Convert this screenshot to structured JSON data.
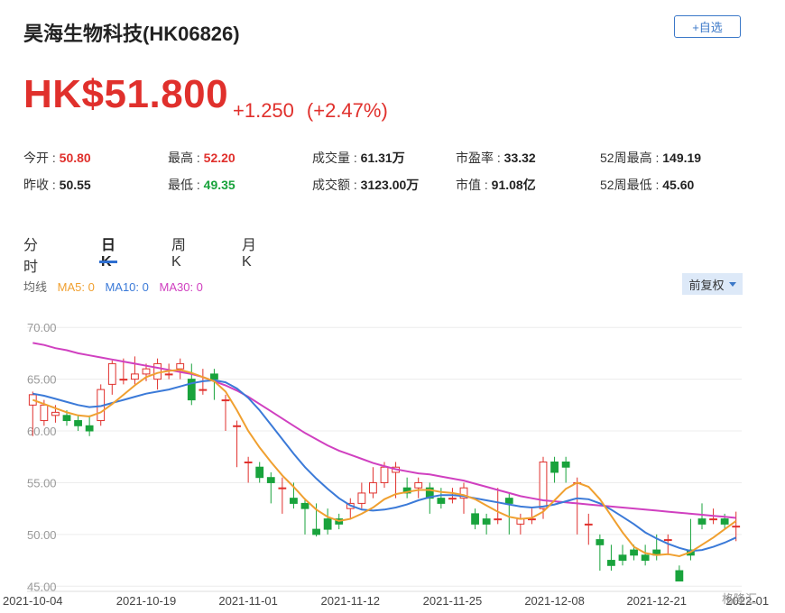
{
  "header": {
    "title": "昊海生物科技(HK06826)",
    "watch_label": "+自选"
  },
  "quote": {
    "price": "HK$51.800",
    "change": "+1.250",
    "change_pct": "(+2.47%)"
  },
  "stats": [
    {
      "label": "今开",
      "value": "50.80",
      "color": "#e0302c"
    },
    {
      "label": "最高",
      "value": "52.20",
      "color": "#e0302c"
    },
    {
      "label": "成交量",
      "value": "61.31万",
      "color": "#222222"
    },
    {
      "label": "市盈率",
      "value": "33.32",
      "color": "#222222"
    },
    {
      "label": "52周最高",
      "value": "149.19",
      "color": "#222222"
    },
    {
      "label": "昨收",
      "value": "50.55",
      "color": "#222222"
    },
    {
      "label": "最低",
      "value": "49.35",
      "color": "#19a33c"
    },
    {
      "label": "成交额",
      "value": "3123.00万",
      "color": "#222222"
    },
    {
      "label": "市值",
      "value": "91.08亿",
      "color": "#222222"
    },
    {
      "label": "52周最低",
      "value": "45.60",
      "color": "#222222"
    }
  ],
  "tabs": [
    {
      "label": "分时",
      "active": false
    },
    {
      "label": "日K",
      "active": true
    },
    {
      "label": "周K",
      "active": false
    },
    {
      "label": "月K",
      "active": false
    }
  ],
  "legend": {
    "prefix": "均线",
    "ma5": "MA5: 0",
    "ma10": "MA10: 0",
    "ma30": "MA30: 0",
    "ma5_color": "#f0a030",
    "ma10_color": "#3b7ad8",
    "ma30_color": "#d040c0"
  },
  "adjust_label": "前复权",
  "watermark": "格隆汇",
  "chart_data": {
    "type": "candlestick",
    "y_ticks": [
      "70.00",
      "65.00",
      "60.00",
      "55.00",
      "50.00",
      "45.00"
    ],
    "ylim": [
      44.5,
      71.5
    ],
    "x_ticks": [
      {
        "label": "2021-10-04",
        "index": 0
      },
      {
        "label": "2021-10-19",
        "index": 10
      },
      {
        "label": "2021-11-01",
        "index": 19
      },
      {
        "label": "2021-11-12",
        "index": 28
      },
      {
        "label": "2021-11-25",
        "index": 37
      },
      {
        "label": "2021-12-08",
        "index": 46
      },
      {
        "label": "2021-12-21",
        "index": 55
      },
      {
        "label": "2022-01",
        "index": 63
      }
    ],
    "up_color": "#e0302c",
    "down_color": "#19a33c",
    "candles": [
      [
        62.5,
        63.5,
        60.0,
        59.5,
        63.8
      ],
      [
        61.0,
        62.5,
        61.0,
        60.5,
        63.0
      ],
      [
        61.5,
        61.8,
        61.0,
        60.8,
        62.5
      ],
      [
        61.5,
        61.0,
        61.5,
        60.5,
        62.0
      ],
      [
        61.0,
        60.5,
        61.0,
        60.0,
        61.5
      ],
      [
        60.5,
        60.0,
        61.0,
        59.5,
        61.5
      ],
      [
        61.0,
        64.0,
        61.0,
        60.5,
        64.5
      ],
      [
        64.5,
        66.5,
        64.0,
        63.5,
        66.8
      ],
      [
        65.0,
        65.0,
        66.5,
        64.5,
        67.0
      ],
      [
        65.0,
        65.5,
        67.0,
        64.5,
        67.2
      ],
      [
        65.5,
        66.0,
        65.5,
        64.8,
        66.5
      ],
      [
        65.0,
        66.5,
        64.5,
        64.0,
        67.0
      ],
      [
        65.5,
        65.5,
        66.0,
        65.0,
        66.5
      ],
      [
        66.0,
        66.5,
        65.5,
        65.0,
        67.0
      ],
      [
        65.0,
        63.0,
        66.0,
        62.5,
        66.5
      ],
      [
        64.0,
        64.0,
        65.5,
        63.5,
        66.0
      ],
      [
        65.5,
        65.0,
        63.5,
        63.0,
        66.0
      ],
      [
        63.0,
        63.0,
        60.5,
        60.0,
        63.5
      ],
      [
        60.5,
        60.5,
        57.0,
        56.5,
        61.0
      ],
      [
        57.0,
        57.0,
        55.5,
        55.0,
        57.5
      ],
      [
        56.5,
        55.5,
        55.5,
        55.0,
        57.0
      ],
      [
        55.5,
        55.0,
        53.5,
        53.0,
        56.0
      ],
      [
        54.5,
        54.5,
        52.5,
        52.0,
        55.5
      ],
      [
        53.5,
        53.0,
        53.5,
        52.5,
        55.0
      ],
      [
        53.0,
        52.5,
        50.5,
        50.0,
        53.5
      ],
      [
        50.5,
        50.0,
        52.5,
        49.8,
        53.0
      ],
      [
        51.5,
        50.5,
        51.5,
        50.0,
        52.5
      ],
      [
        51.5,
        51.0,
        51.5,
        50.5,
        52.0
      ],
      [
        52.5,
        53.0,
        52.0,
        51.5,
        53.5
      ],
      [
        53.0,
        54.0,
        53.5,
        52.5,
        55.0
      ],
      [
        54.0,
        55.0,
        54.0,
        53.5,
        56.5
      ],
      [
        55.0,
        56.5,
        55.5,
        54.5,
        57.0
      ],
      [
        56.0,
        56.5,
        54.0,
        53.5,
        57.0
      ],
      [
        54.5,
        54.0,
        54.5,
        53.5,
        55.5
      ],
      [
        54.5,
        55.0,
        54.0,
        53.5,
        55.5
      ],
      [
        54.5,
        53.5,
        52.5,
        52.0,
        55.0
      ],
      [
        53.5,
        53.0,
        54.0,
        52.5,
        54.5
      ],
      [
        53.5,
        53.5,
        54.0,
        53.0,
        54.5
      ],
      [
        53.5,
        54.5,
        52.5,
        52.0,
        55.0
      ],
      [
        52.0,
        51.0,
        51.0,
        50.5,
        52.5
      ],
      [
        51.5,
        51.0,
        50.5,
        50.0,
        52.0
      ],
      [
        51.5,
        51.5,
        53.5,
        51.0,
        54.5
      ],
      [
        53.5,
        53.0,
        50.5,
        50.0,
        54.0
      ],
      [
        51.0,
        51.5,
        50.5,
        50.0,
        52.0
      ],
      [
        51.5,
        51.5,
        52.0,
        51.0,
        52.5
      ],
      [
        52.5,
        57.0,
        52.5,
        51.5,
        57.5
      ],
      [
        57.0,
        56.0,
        56.5,
        55.0,
        57.5
      ],
      [
        57.0,
        56.5,
        55.5,
        55.0,
        57.5
      ],
      [
        55.0,
        55.0,
        50.5,
        50.0,
        55.5
      ],
      [
        51.0,
        51.0,
        49.5,
        49.0,
        52.0
      ],
      [
        49.5,
        49.0,
        47.0,
        46.5,
        50.0
      ],
      [
        47.5,
        47.0,
        47.5,
        46.5,
        49.0
      ],
      [
        48.0,
        47.5,
        48.5,
        47.0,
        49.0
      ],
      [
        48.5,
        48.0,
        48.5,
        47.5,
        49.0
      ],
      [
        48.0,
        47.5,
        48.5,
        47.0,
        49.0
      ],
      [
        48.5,
        48.0,
        49.5,
        47.5,
        50.0
      ],
      [
        49.5,
        49.5,
        48.5,
        48.0,
        50.0
      ],
      [
        46.5,
        45.5,
        46.5,
        45.5,
        47.0
      ],
      [
        48.5,
        48.0,
        51.0,
        47.5,
        51.5
      ],
      [
        51.5,
        51.0,
        52.0,
        50.5,
        53.0
      ],
      [
        51.5,
        51.5,
        51.5,
        51.0,
        52.5
      ],
      [
        51.5,
        51.0,
        51.0,
        50.5,
        52.0
      ],
      [
        50.8,
        50.8,
        51.8,
        49.35,
        52.2
      ]
    ],
    "ma5": [
      63.0,
      62.6,
      62.2,
      61.8,
      61.5,
      61.4,
      61.8,
      62.6,
      63.5,
      64.4,
      65.2,
      65.6,
      65.8,
      65.9,
      65.6,
      65.2,
      64.8,
      63.8,
      62.0,
      60.0,
      58.4,
      57.0,
      55.7,
      54.6,
      53.4,
      52.4,
      51.7,
      51.3,
      51.5,
      52.0,
      52.6,
      53.4,
      53.9,
      54.1,
      54.3,
      54.3,
      54.1,
      54.0,
      53.8,
      53.4,
      52.8,
      52.2,
      51.7,
      51.5,
      51.6,
      52.2,
      53.3,
      54.4,
      55.0,
      54.6,
      53.4,
      51.8,
      50.2,
      48.8,
      48.2,
      48.0,
      48.1,
      47.9,
      48.3,
      49.0,
      49.7,
      50.5,
      51.3
    ],
    "ma10": [
      63.6,
      63.4,
      63.1,
      62.8,
      62.5,
      62.3,
      62.4,
      62.7,
      63.0,
      63.3,
      63.6,
      63.8,
      64.0,
      64.3,
      64.6,
      64.8,
      64.9,
      64.7,
      64.1,
      63.2,
      62.0,
      60.6,
      59.2,
      57.8,
      56.5,
      55.4,
      54.4,
      53.5,
      52.8,
      52.4,
      52.3,
      52.4,
      52.6,
      52.9,
      53.3,
      53.6,
      53.8,
      53.8,
      53.7,
      53.5,
      53.3,
      53.1,
      52.9,
      52.7,
      52.6,
      52.7,
      52.9,
      53.2,
      53.5,
      53.4,
      53.0,
      52.4,
      51.7,
      51.0,
      50.2,
      49.6,
      49.1,
      48.7,
      48.4,
      48.5,
      48.8,
      49.2,
      49.7
    ],
    "ma30": [
      68.5,
      68.3,
      68.0,
      67.8,
      67.5,
      67.3,
      67.1,
      66.9,
      66.7,
      66.5,
      66.3,
      66.1,
      65.9,
      65.7,
      65.5,
      65.2,
      64.8,
      64.4,
      63.9,
      63.3,
      62.6,
      61.9,
      61.2,
      60.5,
      59.8,
      59.2,
      58.6,
      58.1,
      57.7,
      57.3,
      56.9,
      56.6,
      56.3,
      56.1,
      55.9,
      55.8,
      55.6,
      55.4,
      55.2,
      54.9,
      54.6,
      54.3,
      54.0,
      53.7,
      53.5,
      53.3,
      53.2,
      53.1,
      53.0,
      52.9,
      52.8,
      52.7,
      52.6,
      52.5,
      52.4,
      52.3,
      52.2,
      52.1,
      52.0,
      51.9,
      51.8,
      51.7,
      51.6
    ]
  }
}
